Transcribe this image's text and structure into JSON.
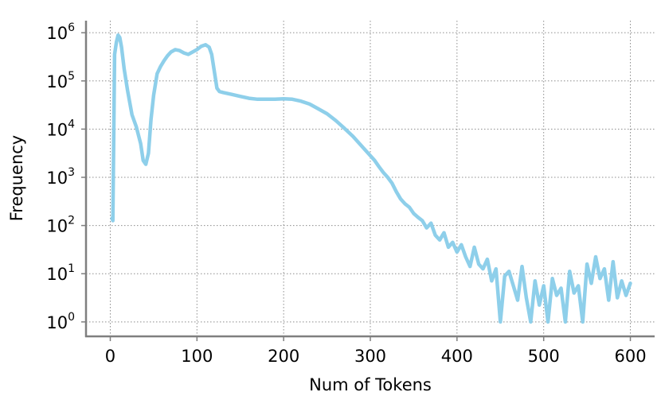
{
  "chart_data": {
    "type": "line",
    "title": "",
    "xlabel": "Num of Tokens",
    "ylabel": "Frequency",
    "xlim": [
      -28,
      628
    ],
    "ylim_log10": [
      -0.3,
      6.25
    ],
    "yscale": "log",
    "grid": true,
    "x_ticks": [
      "0",
      "100",
      "200",
      "300",
      "400",
      "500",
      "600"
    ],
    "y_ticks": [
      {
        "base": "10",
        "exp": "0"
      },
      {
        "base": "10",
        "exp": "1"
      },
      {
        "base": "10",
        "exp": "2"
      },
      {
        "base": "10",
        "exp": "3"
      },
      {
        "base": "10",
        "exp": "4"
      },
      {
        "base": "10",
        "exp": "5"
      },
      {
        "base": "10",
        "exp": "6"
      }
    ],
    "series": [
      {
        "color": "#8ecfea",
        "x": [
          2,
          3,
          5,
          7,
          9,
          11,
          13,
          16,
          20,
          25,
          30,
          35,
          38,
          41,
          44,
          47,
          50,
          54,
          58,
          62,
          66,
          70,
          75,
          80,
          85,
          90,
          95,
          100,
          105,
          110,
          114,
          117,
          120,
          123,
          126,
          130,
          140,
          150,
          160,
          170,
          180,
          190,
          200,
          210,
          220,
          230,
          240,
          250,
          260,
          270,
          280,
          290,
          300,
          305,
          310,
          315,
          320,
          325,
          330,
          335,
          340,
          345,
          350,
          355,
          360,
          365,
          370,
          375,
          380,
          385,
          390,
          395,
          400,
          405,
          410,
          415,
          420,
          425,
          430,
          435,
          440,
          445,
          450,
          455,
          460,
          465,
          470,
          475,
          480,
          485,
          490,
          495,
          500,
          505,
          510,
          515,
          520,
          525,
          530,
          535,
          540,
          545,
          550,
          555,
          560,
          565,
          570,
          575,
          580,
          585,
          590,
          595,
          600
        ],
        "y_log10": [
          2.15,
          2.1,
          5.55,
          5.8,
          5.95,
          5.9,
          5.7,
          5.25,
          4.8,
          4.3,
          4.05,
          3.7,
          3.35,
          3.27,
          3.5,
          4.2,
          4.7,
          5.15,
          5.3,
          5.42,
          5.52,
          5.6,
          5.65,
          5.63,
          5.58,
          5.55,
          5.6,
          5.65,
          5.72,
          5.75,
          5.7,
          5.55,
          5.2,
          4.85,
          4.78,
          4.76,
          4.72,
          4.68,
          4.64,
          4.62,
          4.62,
          4.62,
          4.63,
          4.62,
          4.58,
          4.52,
          4.42,
          4.32,
          4.18,
          4.02,
          3.85,
          3.65,
          3.45,
          3.35,
          3.22,
          3.1,
          3.0,
          2.88,
          2.7,
          2.55,
          2.45,
          2.38,
          2.25,
          2.17,
          2.1,
          1.95,
          2.05,
          1.8,
          1.7,
          1.85,
          1.55,
          1.65,
          1.45,
          1.6,
          1.35,
          1.15,
          1.55,
          1.2,
          1.1,
          1.3,
          0.85,
          1.1,
          0.0,
          0.95,
          1.05,
          0.75,
          0.45,
          1.15,
          0.5,
          0.0,
          0.85,
          0.35,
          0.75,
          0.0,
          0.9,
          0.55,
          0.7,
          0.0,
          1.05,
          0.6,
          0.75,
          0.0,
          1.2,
          0.8,
          1.35,
          0.9,
          1.1,
          0.45,
          1.25,
          0.5,
          0.85,
          0.55,
          0.8
        ]
      }
    ]
  }
}
